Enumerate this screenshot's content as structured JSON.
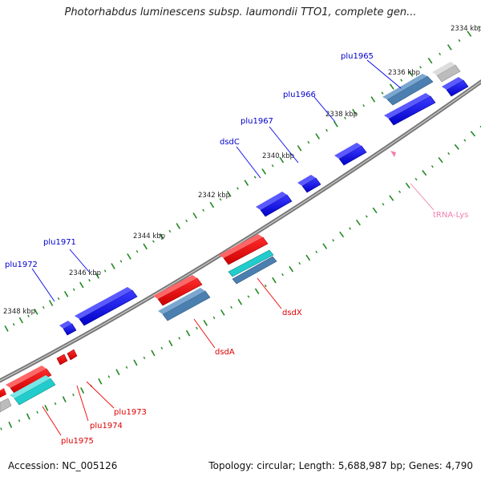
{
  "title": "Photorhabdus luminescens subsp. laumondii TTO1, complete gen...",
  "footer": {
    "accession_label": "Accession:",
    "accession_value": "NC_005126",
    "topology_label": "Topology:",
    "topology_value": "circular",
    "length_label": "Length:",
    "length_value": "5,688,987 bp",
    "genes_label": "Genes:",
    "genes_value": "4,790"
  },
  "colors": {
    "forward_gene": "#0000ee",
    "reverse_gene": "#ee0000",
    "reverse_cds_cyan": "#22cccc",
    "steel_blue": "#4a7fb0",
    "gray_gene": "#bbbbbb",
    "trna": "#f07fb0",
    "tick": "#228822",
    "backbone": "#777777"
  },
  "scale_labels": [
    {
      "text": "2334 kbp",
      "pos": 0.98
    },
    {
      "text": "2336 kbp",
      "pos": 0.83
    },
    {
      "text": "2338 kbp",
      "pos": 0.68
    },
    {
      "text": "2340 kbp",
      "pos": 0.56
    },
    {
      "text": "2342 kbp",
      "pos": 0.43
    },
    {
      "text": "2344 kbp",
      "pos": 0.31
    },
    {
      "text": "2346 kbp",
      "pos": 0.17
    },
    {
      "text": "2348 kbp",
      "pos": 0.03
    }
  ],
  "gene_labels": [
    {
      "name": "plu1965",
      "strand": "forward"
    },
    {
      "name": "plu1966",
      "strand": "forward"
    },
    {
      "name": "plu1967",
      "strand": "forward"
    },
    {
      "name": "dsdC",
      "strand": "forward"
    },
    {
      "name": "plu1971",
      "strand": "forward"
    },
    {
      "name": "plu1972",
      "strand": "forward"
    },
    {
      "name": "tRNA-Lys",
      "strand": "trna"
    },
    {
      "name": "dsdX",
      "strand": "reverse"
    },
    {
      "name": "dsdA",
      "strand": "reverse"
    },
    {
      "name": "plu1973",
      "strand": "reverse"
    },
    {
      "name": "plu1974",
      "strand": "reverse"
    },
    {
      "name": "plu1975",
      "strand": "reverse"
    }
  ]
}
